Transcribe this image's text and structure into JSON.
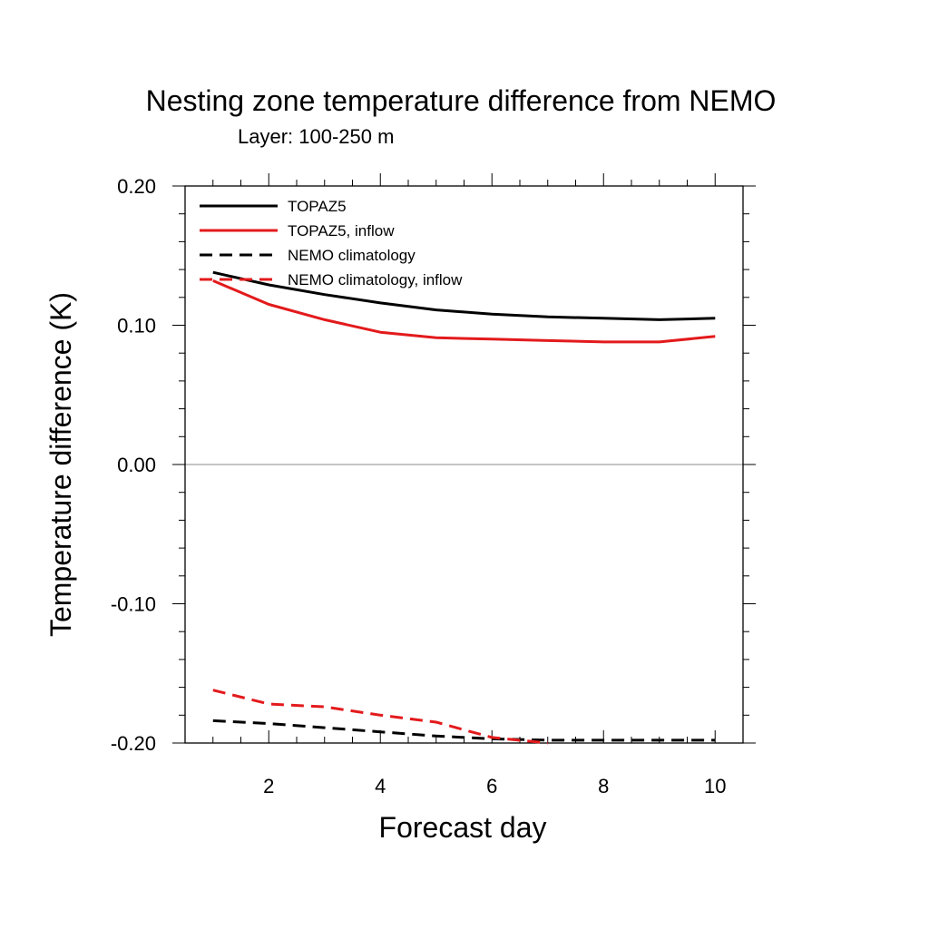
{
  "chart_data": {
    "type": "line",
    "title": "Nesting zone temperature difference from NEMO",
    "subtitle": "Layer: 100-250 m",
    "xlabel": "Forecast day",
    "ylabel": "Temperature difference (K)",
    "xlim": [
      0.5,
      10.5
    ],
    "ylim": [
      -0.2,
      0.2
    ],
    "x_ticks": [
      2,
      4,
      6,
      8,
      10
    ],
    "x_tick_labels": [
      "2",
      "4",
      "6",
      "8",
      "10"
    ],
    "y_ticks": [
      -0.2,
      -0.1,
      0.0,
      0.1,
      0.2
    ],
    "y_tick_labels": [
      "-0.20",
      "-0.10",
      "0.00",
      "0.10",
      "0.20"
    ],
    "zero_line": true,
    "grid": false,
    "legend_position": "top-left",
    "x": [
      1,
      2,
      3,
      4,
      5,
      6,
      7,
      8,
      9,
      10
    ],
    "series": [
      {
        "name": "TOPAZ5",
        "color": "#000000",
        "dash": "solid",
        "values": [
          0.138,
          0.129,
          0.122,
          0.116,
          0.111,
          0.108,
          0.106,
          0.105,
          0.104,
          0.105
        ]
      },
      {
        "name": "TOPAZ5, inflow",
        "color": "#e31a1c",
        "dash": "solid",
        "values": [
          0.132,
          0.115,
          0.104,
          0.095,
          0.091,
          0.09,
          0.089,
          0.088,
          0.088,
          0.092
        ]
      },
      {
        "name": "NEMO climatology",
        "color": "#000000",
        "dash": "dashed",
        "values": [
          -0.184,
          -0.186,
          -0.189,
          -0.192,
          -0.195,
          -0.197,
          -0.198,
          -0.198,
          -0.198,
          -0.198
        ]
      },
      {
        "name": "NEMO climatology, inflow",
        "color": "#e31a1c",
        "dash": "dashed",
        "values": [
          -0.162,
          -0.172,
          -0.174,
          -0.18,
          -0.185,
          -0.196,
          -0.2,
          null,
          null,
          null
        ]
      }
    ]
  }
}
